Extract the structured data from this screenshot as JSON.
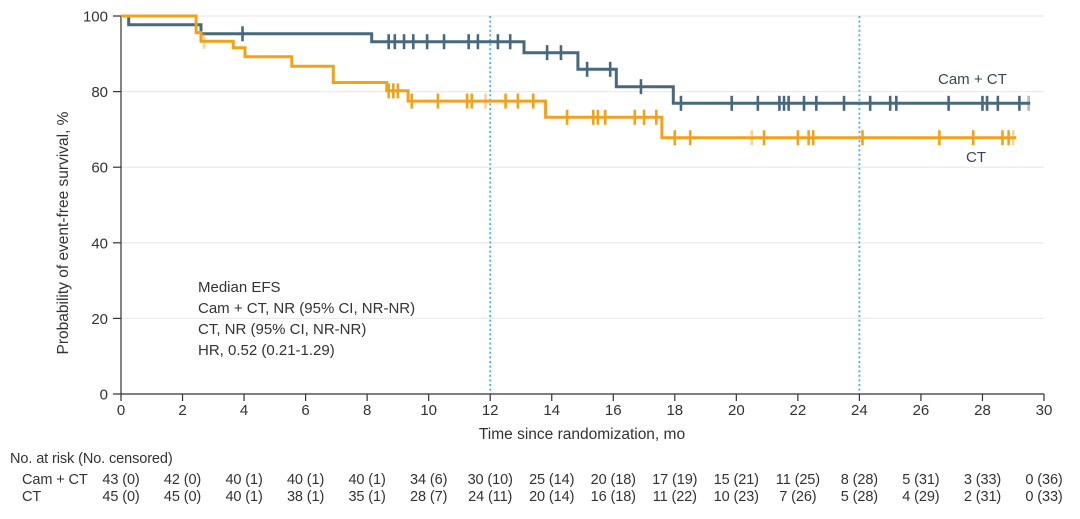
{
  "chart_data": {
    "type": "line",
    "subtype": "kaplan-meier-step",
    "title": "",
    "xlabel": "Time since randomization, mo",
    "ylabel": "Probability of event-free survival, %",
    "xlim": [
      0,
      30
    ],
    "ylim": [
      0,
      100
    ],
    "xticks": [
      0,
      2,
      4,
      6,
      8,
      10,
      12,
      14,
      16,
      18,
      20,
      22,
      24,
      26,
      28,
      30
    ],
    "yticks": [
      0,
      20,
      40,
      60,
      80,
      100
    ],
    "grid": "horizontal",
    "gridline_color": "#ebebeb",
    "axis_color": "#333333",
    "reference_lines_x": [
      12,
      24
    ],
    "reference_line_color": "#3db5e8",
    "annotation": [
      "Median EFS",
      "Cam + CT, NR (95% CI, NR-NR)",
      "CT, NR (95% CI, NR-NR)",
      "HR, 0.52 (0.21-1.29)"
    ],
    "series": [
      {
        "name": "Cam + CT",
        "label": "Cam + CT",
        "color": "#47687d",
        "steps": [
          [
            0,
            100
          ],
          [
            0.25,
            97.7
          ],
          [
            2.6,
            95.3
          ],
          [
            8.15,
            93.2
          ],
          [
            13.1,
            90.3
          ],
          [
            14.85,
            85.9
          ],
          [
            16.1,
            81.3
          ],
          [
            17.95,
            76.9
          ]
        ],
        "end": 29.55,
        "censors": [
          3.95,
          8.7,
          8.9,
          9.2,
          9.5,
          9.95,
          10.5,
          11.3,
          11.6,
          12.25,
          12.65,
          13.85,
          14.3,
          15.15,
          15.9,
          16.9,
          18.2,
          19.85,
          20.7,
          21.4,
          21.55,
          21.7,
          22.2,
          22.6,
          23.5,
          24.35,
          25.0,
          25.2,
          26.9,
          28.0,
          28.15,
          28.5,
          29.2
        ],
        "light_censors": [
          29.5
        ]
      },
      {
        "name": "CT",
        "label": "CT",
        "color": "#f2a11c",
        "steps": [
          [
            0,
            100
          ],
          [
            2.44,
            95.6
          ],
          [
            2.6,
            93.3
          ],
          [
            3.65,
            91.6
          ],
          [
            4.03,
            89.2
          ],
          [
            5.55,
            86.7
          ],
          [
            6.9,
            82.4
          ],
          [
            8.64,
            80.2
          ],
          [
            9.33,
            77.5
          ],
          [
            13.8,
            73.2
          ],
          [
            17.58,
            67.8
          ]
        ],
        "end": 29.1,
        "censors": [
          8.7,
          8.85,
          9.0,
          9.45,
          10.3,
          11.25,
          11.4,
          12.5,
          12.9,
          13.4,
          14.5,
          15.35,
          15.5,
          15.74,
          16.7,
          17.0,
          17.4,
          18.0,
          18.5,
          20.9,
          22.0,
          22.35,
          22.5,
          24.1,
          26.6,
          27.7,
          28.65,
          28.85
        ],
        "light_censors": [
          2.7,
          11.85,
          20.5,
          29.0
        ]
      }
    ]
  },
  "risk_table": {
    "title": "No. at risk (No. censored)",
    "months": [
      0,
      2,
      4,
      6,
      8,
      10,
      12,
      14,
      16,
      18,
      20,
      22,
      24,
      26,
      28,
      30
    ],
    "rows": [
      {
        "label": "Cam + CT",
        "values": [
          "43 (0)",
          "42 (0)",
          "40 (1)",
          "40 (1)",
          "40 (1)",
          "34 (6)",
          "30 (10)",
          "25 (14)",
          "20 (18)",
          "17 (19)",
          "15 (21)",
          "11 (25)",
          "8 (28)",
          "5 (31)",
          "3 (33)",
          "0 (36)"
        ]
      },
      {
        "label": "CT",
        "values": [
          "45 (0)",
          "45 (0)",
          "40 (1)",
          "38 (1)",
          "35 (1)",
          "28 (7)",
          "24 (11)",
          "20 (14)",
          "16 (18)",
          "11 (22)",
          "10 (23)",
          "7 (26)",
          "5 (28)",
          "4 (29)",
          "2 (31)",
          "0 (33)"
        ]
      }
    ]
  }
}
